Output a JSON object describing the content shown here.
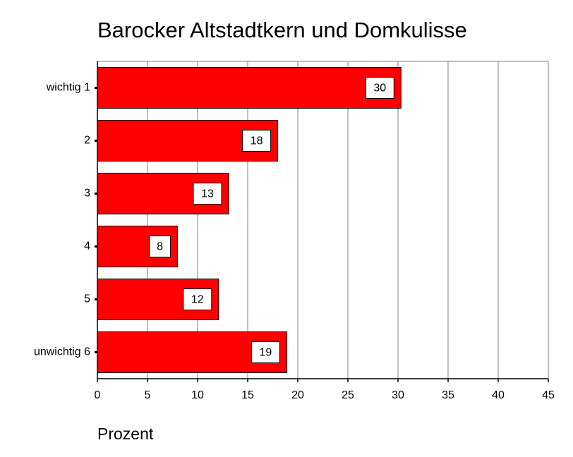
{
  "chart_data": {
    "type": "hbar",
    "title": "Barocker Altstadtkern und Domkulisse",
    "x_label": "Prozent",
    "categories": [
      "wichtig 1",
      "2",
      "3",
      "4",
      "5",
      "unwichtig 6"
    ],
    "values": [
      30.3,
      18,
      13.1,
      8,
      12.1,
      18.9
    ],
    "value_labels": [
      "30",
      "18",
      "13",
      "8",
      "12",
      "19"
    ],
    "color": "#ff0000",
    "xlim": [
      0,
      45
    ],
    "xticks": [
      0,
      5,
      10,
      15,
      20,
      25,
      30,
      35,
      40,
      45
    ],
    "grid": true
  }
}
